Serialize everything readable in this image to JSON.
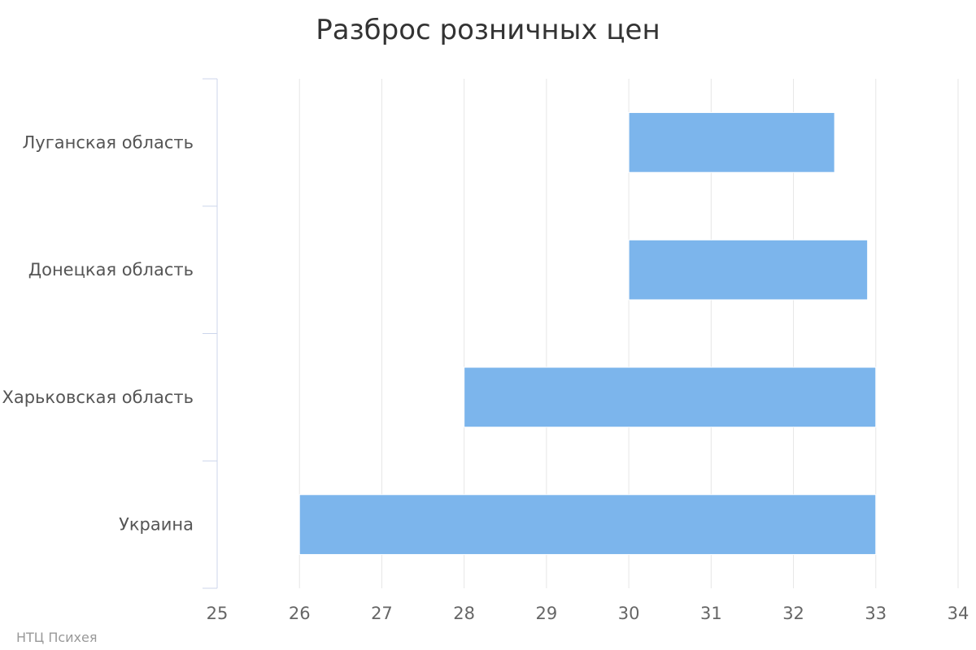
{
  "chart_data": {
    "type": "bar",
    "orientation": "horizontal",
    "subtype": "range",
    "title": "Разброс розничных цен",
    "xlabel": "",
    "ylabel": "",
    "categories": [
      "Луганская область",
      "Донецкая область",
      "Харьковская область",
      "Украина"
    ],
    "series": [
      {
        "low": [
          30,
          30,
          28,
          26
        ],
        "high": [
          32.5,
          32.9,
          33,
          33
        ]
      }
    ],
    "xlim": [
      25,
      34
    ],
    "xticks": [
      25,
      26,
      27,
      28,
      29,
      30,
      31,
      32,
      33,
      34
    ],
    "grid": true,
    "legend": "none",
    "bar_color": "#7cb5ec",
    "credit": "НТЦ Психея"
  }
}
